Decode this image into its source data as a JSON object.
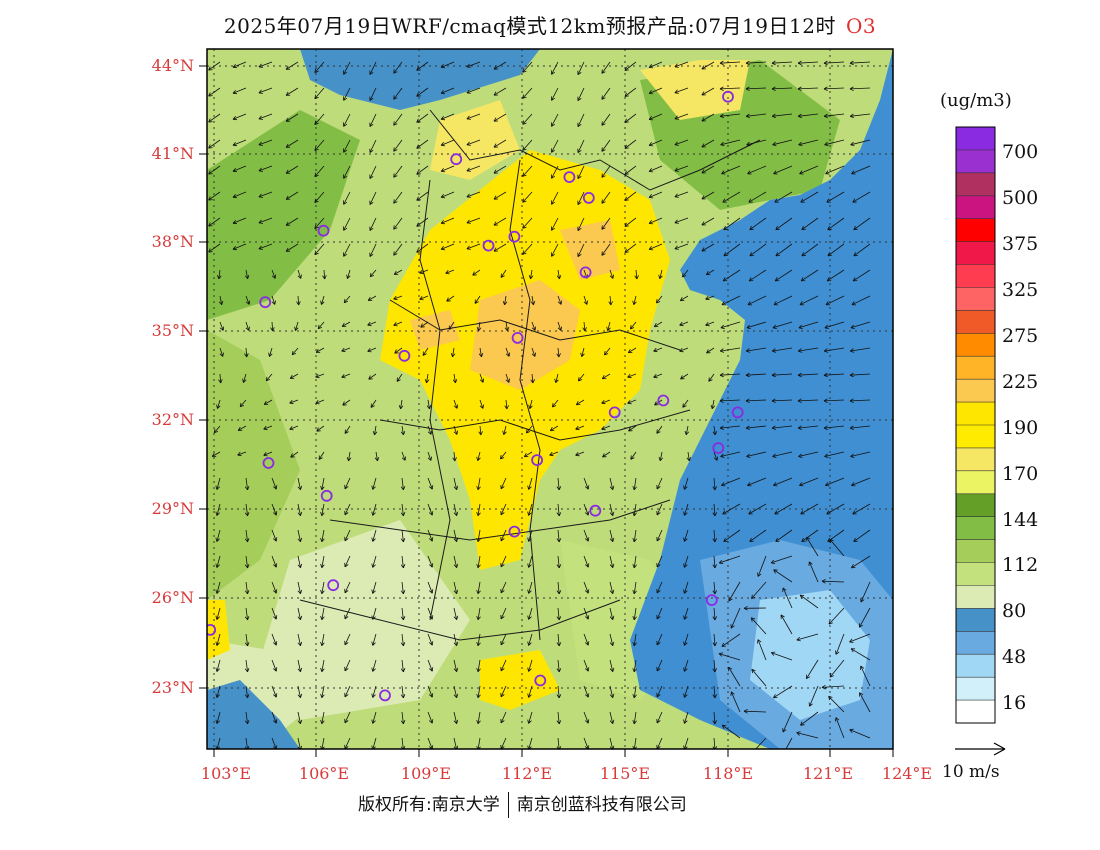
{
  "title": {
    "main": "2025年07月19日WRF/cmaq模式12km预报产品:07月19日12时",
    "pollutant": "O3",
    "pollutant_color": "#e03030"
  },
  "map": {
    "lat_ticks": [
      "44°N",
      "41°N",
      "38°N",
      "35°N",
      "32°N",
      "29°N",
      "26°N",
      "23°N"
    ],
    "lat_values": [
      44,
      41,
      38,
      35,
      32,
      29,
      26,
      23
    ],
    "lon_ticks": [
      "103°E",
      "106°E",
      "109°E",
      "112°E",
      "115°E",
      "118°E",
      "121°E",
      "124°E"
    ],
    "lon_values": [
      103,
      106,
      109,
      112,
      115,
      118,
      121,
      124
    ],
    "tick_color": "#d83a3a",
    "lon_range": [
      102.8,
      124
    ],
    "lat_range": [
      21.0,
      44.5
    ],
    "station_lonlat": [
      [
        118.9,
        42.9
      ],
      [
        110.5,
        40.8
      ],
      [
        114.0,
        40.2
      ],
      [
        114.6,
        39.5
      ],
      [
        106.4,
        38.4
      ],
      [
        111.5,
        37.9
      ],
      [
        112.3,
        38.2
      ],
      [
        114.5,
        37.0
      ],
      [
        104.6,
        36.0
      ],
      [
        112.4,
        34.8
      ],
      [
        108.9,
        34.2
      ],
      [
        115.4,
        32.3
      ],
      [
        116.9,
        32.7
      ],
      [
        119.2,
        32.3
      ],
      [
        118.6,
        31.1
      ],
      [
        104.7,
        30.6
      ],
      [
        113.0,
        30.7
      ],
      [
        106.5,
        29.5
      ],
      [
        114.8,
        29.0
      ],
      [
        112.3,
        28.3
      ],
      [
        106.7,
        26.5
      ],
      [
        118.4,
        26.0
      ],
      [
        102.9,
        25.0
      ],
      [
        108.3,
        22.8
      ],
      [
        113.1,
        23.3
      ]
    ],
    "station_color": "#8a2be2",
    "ocean_color": "#3f8fd2",
    "land_base_color": "#bfdc7a"
  },
  "legend": {
    "unit": "(ug/m3)",
    "labels": [
      "700",
      "500",
      "375",
      "325",
      "275",
      "225",
      "190",
      "170",
      "144",
      "112",
      "80",
      "48",
      "16"
    ],
    "colors": [
      "#8a2be2",
      "#9b30d0",
      "#b03060",
      "#cc1480",
      "#ff0000",
      "#f01848",
      "#ff3c50",
      "#ff6464",
      "#f05a28",
      "#ff8c00",
      "#ffb428",
      "#fbc850",
      "#ffe600",
      "#ffeb00",
      "#f5e664",
      "#ebf564",
      "#64a028",
      "#82be46",
      "#a5cd5a",
      "#c3e17d",
      "#dceab4",
      "#4691c8",
      "#69aae1",
      "#a0d7f5",
      "#d2f0fa",
      "#ffffff"
    ]
  },
  "wind_reference": {
    "label": "10 m/s"
  },
  "footer": {
    "left": "版权所有:南京大学",
    "right": "南京创蓝科技有限公司"
  }
}
